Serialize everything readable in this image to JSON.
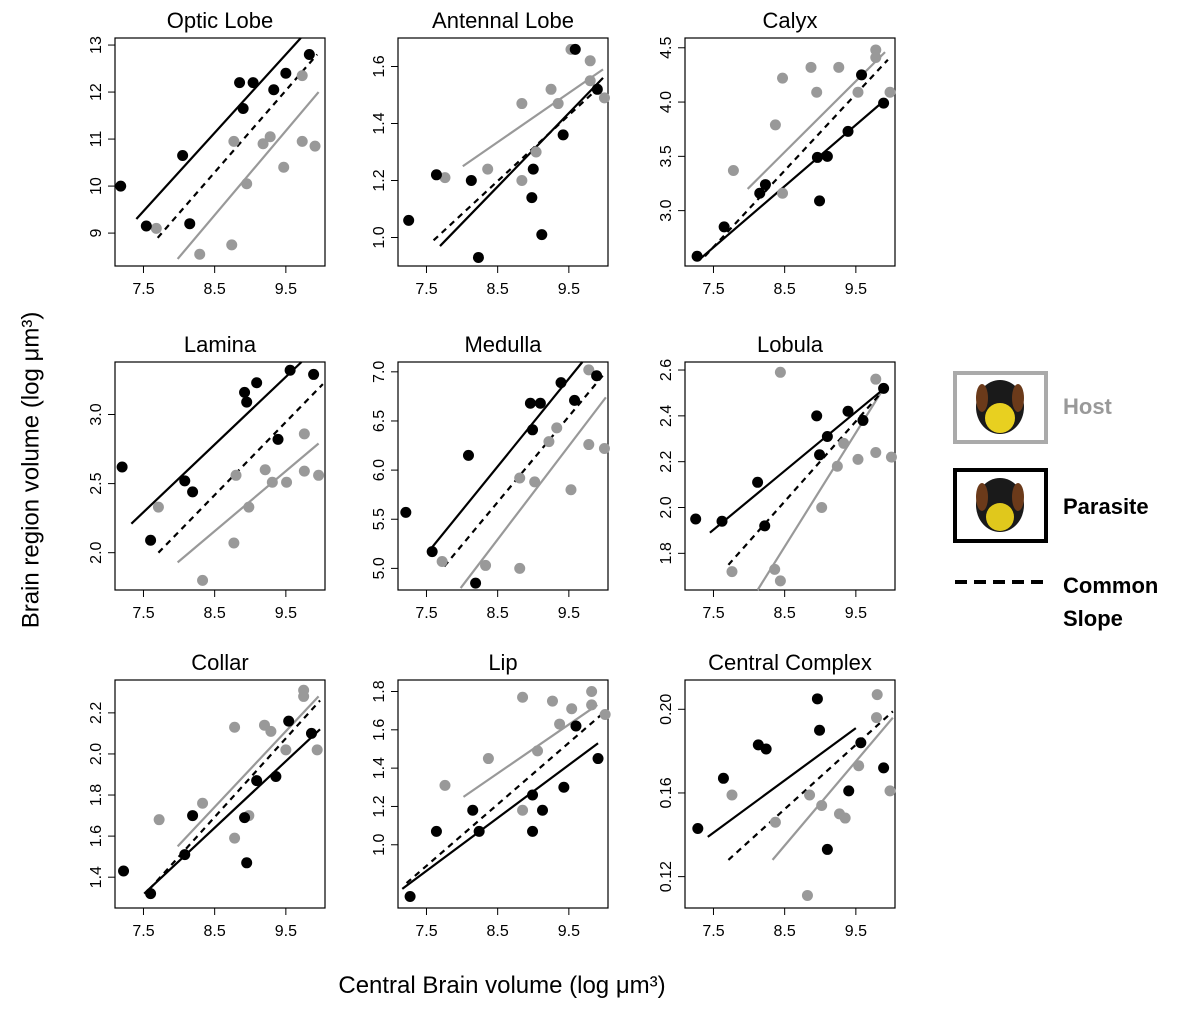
{
  "chart_data": [
    {
      "type": "scatter",
      "title": "Optic Lobe",
      "xlim": [
        7.1,
        10.05
      ],
      "xticks": [
        7.5,
        8.5,
        9.5
      ],
      "ylim": [
        8.3,
        13.15
      ],
      "yticks": [
        9,
        10,
        11,
        12,
        13
      ],
      "series": [
        {
          "color": "#999999",
          "x": [
            7.68,
            8.29,
            8.74,
            8.77,
            8.95,
            9.18,
            9.28,
            9.47,
            9.73,
            9.73,
            9.91
          ],
          "values": [
            9.1,
            8.55,
            8.75,
            10.95,
            10.05,
            10.9,
            11.05,
            10.4,
            12.35,
            10.95,
            10.85
          ]
        },
        {
          "color": "#000000",
          "x": [
            7.18,
            7.54,
            8.05,
            8.15,
            8.85,
            8.9,
            9.04,
            9.33,
            9.5,
            9.83
          ],
          "values": [
            10.0,
            9.15,
            10.65,
            9.2,
            12.2,
            11.65,
            12.2,
            12.05,
            12.4,
            12.8
          ]
        }
      ],
      "lines": [
        {
          "color": "#999999",
          "x": [
            7.98,
            9.96
          ],
          "values": [
            8.45,
            12.0
          ]
        },
        {
          "color": "#000000",
          "x": [
            7.4,
            9.71
          ],
          "values": [
            9.3,
            13.15
          ]
        },
        {
          "color": "#000000",
          "dash": true,
          "x": [
            7.7,
            9.94
          ],
          "values": [
            8.9,
            12.8
          ]
        }
      ]
    },
    {
      "type": "scatter",
      "title": "Antennal Lobe",
      "xlim": [
        7.1,
        10.05
      ],
      "xticks": [
        7.5,
        8.5,
        9.5
      ],
      "ylim": [
        0.9,
        1.7
      ],
      "yticks": [
        {
          "value": 1,
          "label": "1.0"
        },
        1.2,
        1.4,
        1.6
      ],
      "series": [
        {
          "color": "#999999",
          "x": [
            7.76,
            8.36,
            8.84,
            8.84,
            9.04,
            9.25,
            9.35,
            9.53,
            9.8,
            9.8,
            10.0
          ],
          "values": [
            1.21,
            1.24,
            1.47,
            1.2,
            1.3,
            1.52,
            1.47,
            1.66,
            1.62,
            1.55,
            1.49
          ]
        },
        {
          "color": "#000000",
          "x": [
            7.25,
            7.64,
            8.13,
            8.23,
            8.98,
            9.0,
            9.12,
            9.42,
            9.59,
            9.9
          ],
          "values": [
            1.06,
            1.22,
            1.2,
            0.93,
            1.14,
            1.24,
            1.01,
            1.36,
            1.66,
            1.52
          ]
        }
      ],
      "lines": [
        {
          "color": "#999999",
          "x": [
            8.01,
            9.98
          ],
          "values": [
            1.25,
            1.59
          ]
        },
        {
          "color": "#000000",
          "x": [
            7.69,
            9.98
          ],
          "values": [
            0.97,
            1.56
          ]
        },
        {
          "color": "#000000",
          "dash": true,
          "x": [
            7.6,
            9.98
          ],
          "values": [
            0.99,
            1.54
          ]
        }
      ]
    },
    {
      "type": "scatter",
      "title": "Calyx",
      "xlim": [
        7.1,
        10.05
      ],
      "xticks": [
        7.5,
        8.5,
        9.5
      ],
      "ylim": [
        2.49,
        4.59
      ],
      "yticks": [
        {
          "value": 3,
          "label": "3.0"
        },
        3.5,
        {
          "value": 4,
          "label": "4.0"
        },
        4.5
      ],
      "series": [
        {
          "color": "#999999",
          "x": [
            7.78,
            8.37,
            8.47,
            8.47,
            8.87,
            8.95,
            9.26,
            9.53,
            9.78,
            9.78,
            9.98
          ],
          "values": [
            3.37,
            3.79,
            4.22,
            3.16,
            4.32,
            4.09,
            4.32,
            4.09,
            4.48,
            4.41,
            4.09
          ]
        },
        {
          "color": "#000000",
          "x": [
            7.27,
            7.65,
            8.15,
            8.23,
            8.99,
            8.96,
            9.1,
            9.39,
            9.58,
            9.89
          ],
          "values": [
            2.58,
            2.85,
            3.16,
            3.24,
            3.09,
            3.49,
            3.5,
            3.73,
            4.25,
            3.99
          ]
        }
      ],
      "lines": [
        {
          "color": "#999999",
          "x": [
            7.98,
            9.91
          ],
          "values": [
            3.2,
            4.46
          ]
        },
        {
          "color": "#000000",
          "x": [
            7.32,
            9.91
          ],
          "values": [
            2.56,
            4.02
          ]
        },
        {
          "color": "#000000",
          "dash": true,
          "x": [
            7.38,
            9.95
          ],
          "values": [
            2.58,
            4.39
          ]
        }
      ]
    },
    {
      "type": "scatter",
      "title": "Lamina",
      "xlim": [
        7.1,
        10.05
      ],
      "xticks": [
        7.5,
        8.5,
        9.5
      ],
      "ylim": [
        1.73,
        3.38
      ],
      "yticks": [
        {
          "value": 2,
          "label": "2.0"
        },
        2.5,
        {
          "value": 3,
          "label": "3.0"
        }
      ],
      "series": [
        {
          "color": "#999999",
          "x": [
            7.71,
            8.33,
            8.77,
            8.8,
            8.98,
            9.21,
            9.31,
            9.51,
            9.76,
            9.76,
            9.96
          ],
          "values": [
            2.33,
            1.8,
            2.07,
            2.56,
            2.33,
            2.6,
            2.51,
            2.51,
            2.86,
            2.59,
            2.56
          ]
        },
        {
          "color": "#000000",
          "x": [
            7.2,
            7.6,
            8.08,
            8.19,
            8.92,
            8.95,
            9.09,
            9.39,
            9.56,
            9.89
          ],
          "values": [
            2.62,
            2.09,
            2.52,
            2.44,
            3.16,
            3.09,
            3.23,
            2.82,
            3.32,
            3.29
          ]
        }
      ],
      "lines": [
        {
          "color": "#999999",
          "x": [
            7.98,
            9.96
          ],
          "values": [
            1.93,
            2.79
          ]
        },
        {
          "color": "#000000",
          "x": [
            7.33,
            9.72
          ],
          "values": [
            2.21,
            3.38
          ]
        },
        {
          "color": "#000000",
          "dash": true,
          "x": [
            7.71,
            10.02
          ],
          "values": [
            2.0,
            3.22
          ]
        }
      ]
    },
    {
      "type": "scatter",
      "title": "Medulla",
      "xlim": [
        7.1,
        10.05
      ],
      "xticks": [
        7.5,
        8.5,
        9.5
      ],
      "ylim": [
        4.78,
        7.1
      ],
      "yticks": [
        {
          "value": 5,
          "label": "5.0"
        },
        5.5,
        {
          "value": 6,
          "label": "6.0"
        },
        6.5,
        {
          "value": 7,
          "label": "7.0"
        }
      ],
      "series": [
        {
          "color": "#999999",
          "x": [
            7.72,
            8.33,
            8.81,
            8.81,
            9.02,
            9.22,
            9.33,
            9.53,
            9.78,
            9.78,
            10.0
          ],
          "values": [
            5.07,
            5.03,
            5.92,
            5.0,
            5.88,
            6.29,
            6.43,
            5.8,
            7.02,
            6.26,
            6.22
          ]
        },
        {
          "color": "#000000",
          "x": [
            7.21,
            7.58,
            8.09,
            8.19,
            8.96,
            9.1,
            8.99,
            9.39,
            9.58,
            9.89
          ],
          "values": [
            5.57,
            5.17,
            6.15,
            4.85,
            6.68,
            6.68,
            6.41,
            6.89,
            6.71,
            6.96
          ]
        }
      ],
      "lines": [
        {
          "color": "#999999",
          "x": [
            7.98,
            10.02
          ],
          "values": [
            4.8,
            6.74
          ]
        },
        {
          "color": "#000000",
          "x": [
            7.54,
            9.69
          ],
          "values": [
            5.18,
            7.1
          ]
        },
        {
          "color": "#000000",
          "dash": true,
          "x": [
            7.75,
            10.02
          ],
          "values": [
            5.02,
            7.0
          ]
        }
      ]
    },
    {
      "type": "scatter",
      "title": "Lobula",
      "xlim": [
        7.1,
        10.05
      ],
      "xticks": [
        7.5,
        8.5,
        9.5
      ],
      "ylim": [
        1.64,
        2.635
      ],
      "yticks": [
        1.8,
        {
          "value": 2,
          "label": "2.0"
        },
        2.2,
        2.4,
        2.6
      ],
      "series": [
        {
          "color": "#999999",
          "x": [
            7.76,
            8.36,
            8.44,
            8.44,
            9.02,
            9.24,
            9.33,
            9.53,
            9.78,
            9.78,
            10.0
          ],
          "values": [
            1.72,
            1.73,
            2.59,
            1.68,
            2.0,
            2.18,
            2.28,
            2.21,
            2.56,
            2.24,
            2.22
          ]
        },
        {
          "color": "#000000",
          "x": [
            7.25,
            7.62,
            8.12,
            8.22,
            8.95,
            8.99,
            9.1,
            9.39,
            9.6,
            9.89
          ],
          "values": [
            1.95,
            1.94,
            2.11,
            1.92,
            2.4,
            2.23,
            2.31,
            2.42,
            2.38,
            2.52
          ]
        }
      ],
      "lines": [
        {
          "color": "#999999",
          "x": [
            8.12,
            9.91
          ],
          "values": [
            1.64,
            2.53
          ]
        },
        {
          "color": "#000000",
          "x": [
            7.45,
            9.94
          ],
          "values": [
            1.89,
            2.53
          ]
        },
        {
          "color": "#000000",
          "dash": true,
          "x": [
            7.71,
            9.94
          ],
          "values": [
            1.75,
            2.53
          ]
        }
      ]
    },
    {
      "type": "scatter",
      "title": "Collar",
      "xlim": [
        7.1,
        10.05
      ],
      "xticks": [
        7.5,
        8.5,
        9.5
      ],
      "ylim": [
        1.25,
        2.36
      ],
      "yticks": [
        1.4,
        1.6,
        1.8,
        {
          "value": 2,
          "label": "2.0"
        },
        2.2
      ],
      "series": [
        {
          "color": "#999999",
          "x": [
            7.72,
            8.33,
            8.78,
            8.78,
            8.98,
            9.2,
            9.29,
            9.5,
            9.75,
            9.75,
            9.94
          ],
          "values": [
            1.68,
            1.76,
            2.13,
            1.59,
            1.7,
            2.14,
            2.11,
            2.02,
            2.31,
            2.28,
            2.02
          ]
        },
        {
          "color": "#000000",
          "x": [
            7.22,
            7.6,
            8.08,
            8.19,
            8.92,
            8.95,
            9.09,
            9.36,
            9.54,
            9.86
          ],
          "values": [
            1.43,
            1.32,
            1.51,
            1.7,
            1.69,
            1.47,
            1.87,
            1.89,
            2.16,
            2.1
          ]
        }
      ],
      "lines": [
        {
          "color": "#999999",
          "x": [
            7.98,
            9.96
          ],
          "values": [
            1.55,
            2.28
          ]
        },
        {
          "color": "#000000",
          "x": [
            7.51,
            9.98
          ],
          "values": [
            1.32,
            2.12
          ]
        },
        {
          "color": "#000000",
          "dash": true,
          "x": [
            7.58,
            9.98
          ],
          "values": [
            1.34,
            2.26
          ]
        }
      ]
    },
    {
      "type": "scatter",
      "title": "Lip",
      "xlim": [
        7.1,
        10.05
      ],
      "xticks": [
        7.5,
        8.5,
        9.5
      ],
      "ylim": [
        0.67,
        1.86
      ],
      "yticks": [
        {
          "value": 1,
          "label": "1.0"
        },
        1.2,
        1.4,
        1.6,
        1.8
      ],
      "series": [
        {
          "color": "#999999",
          "x": [
            7.76,
            8.37,
            8.85,
            8.85,
            9.06,
            9.27,
            9.37,
            9.54,
            9.82,
            9.82,
            10.01
          ],
          "values": [
            1.31,
            1.45,
            1.77,
            1.18,
            1.49,
            1.75,
            1.63,
            1.71,
            1.8,
            1.73,
            1.68
          ]
        },
        {
          "color": "#000000",
          "x": [
            7.27,
            7.64,
            8.15,
            8.24,
            8.99,
            8.99,
            9.13,
            9.43,
            9.6,
            9.91
          ],
          "values": [
            0.73,
            1.07,
            1.18,
            1.07,
            1.26,
            1.07,
            1.18,
            1.3,
            1.62,
            1.45
          ]
        }
      ],
      "lines": [
        {
          "color": "#999999",
          "x": [
            8.02,
            9.9
          ],
          "values": [
            1.25,
            1.73
          ]
        },
        {
          "color": "#000000",
          "x": [
            7.16,
            9.91
          ],
          "values": [
            0.77,
            1.53
          ]
        },
        {
          "color": "#000000",
          "dash": true,
          "x": [
            7.22,
            9.96
          ],
          "values": [
            0.8,
            1.68
          ]
        }
      ]
    },
    {
      "type": "scatter",
      "title": "Central Complex",
      "xlim": [
        7.1,
        10.05
      ],
      "xticks": [
        7.5,
        8.5,
        9.5
      ],
      "ylim": [
        0.105,
        0.214
      ],
      "yticks": [
        0.12,
        0.16,
        {
          "value": 0.2,
          "label": "0.20"
        }
      ],
      "series": [
        {
          "color": "#999999",
          "x": [
            7.76,
            8.37,
            8.82,
            8.85,
            9.02,
            9.27,
            9.35,
            9.54,
            9.8,
            9.79,
            9.98
          ],
          "values": [
            0.159,
            0.146,
            0.111,
            0.159,
            0.154,
            0.15,
            0.148,
            0.173,
            0.207,
            0.196,
            0.161
          ]
        },
        {
          "color": "#000000",
          "x": [
            7.28,
            7.64,
            8.13,
            8.24,
            8.96,
            8.99,
            9.1,
            9.4,
            9.57,
            9.89
          ],
          "values": [
            0.143,
            0.167,
            0.183,
            0.181,
            0.205,
            0.19,
            0.133,
            0.161,
            0.184,
            0.172
          ]
        }
      ],
      "lines": [
        {
          "color": "#999999",
          "x": [
            8.33,
            10.02
          ],
          "values": [
            0.128,
            0.196
          ]
        },
        {
          "color": "#000000",
          "x": [
            7.42,
            9.5
          ],
          "values": [
            0.139,
            0.191
          ]
        },
        {
          "color": "#000000",
          "dash": true,
          "x": [
            7.71,
            10.02
          ],
          "values": [
            0.128,
            0.199
          ]
        }
      ]
    }
  ],
  "x_label": "Central Brain volume (log μm³)",
  "y_label": "Brain region volume (log μm³)",
  "legend": [
    {
      "name": "Host",
      "color": "#999999"
    },
    {
      "name": "Parasite",
      "color": "#000000"
    },
    {
      "name": "Common Slope",
      "color": "#000000",
      "dash": true
    }
  ]
}
